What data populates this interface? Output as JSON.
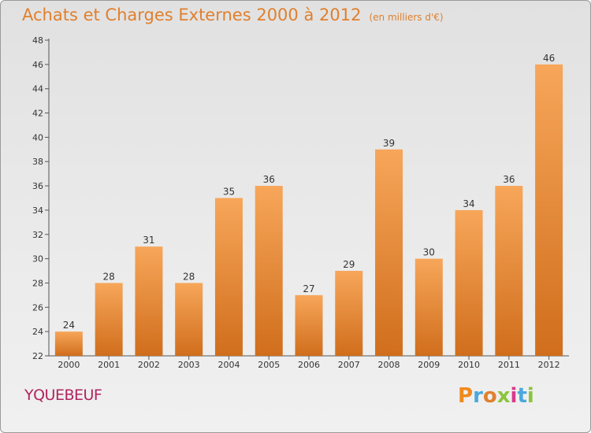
{
  "header": {
    "title": "Achats et Charges Externes 2000 à 2012",
    "unit": "(en milliers d'€)"
  },
  "footer": {
    "commune": "YQUEBEUF",
    "logo_text": "Proxiti"
  },
  "colors": {
    "title": "#e0802e",
    "commune": "#b0245e",
    "bar_light": "#f7a65a",
    "bar_dark": "#d06e1c",
    "logo": [
      "#f08a1c",
      "#4aa8dc",
      "#e0802e",
      "#8cc43c",
      "#d93a8a",
      "#4aa8dc",
      "#8cc43c"
    ]
  },
  "chart_data": {
    "type": "bar",
    "categories": [
      "2000",
      "2001",
      "2002",
      "2003",
      "2004",
      "2005",
      "2006",
      "2007",
      "2008",
      "2009",
      "2010",
      "2011",
      "2012"
    ],
    "values": [
      24,
      28,
      31,
      28,
      35,
      36,
      27,
      29,
      39,
      30,
      34,
      36,
      46
    ],
    "ylim": [
      22,
      48
    ],
    "yticks": [
      22,
      24,
      26,
      28,
      30,
      32,
      34,
      36,
      38,
      40,
      42,
      44,
      46,
      48
    ],
    "grid": false,
    "title": "Achats et Charges Externes 2000 à 2012",
    "xlabel": "",
    "ylabel": ""
  }
}
